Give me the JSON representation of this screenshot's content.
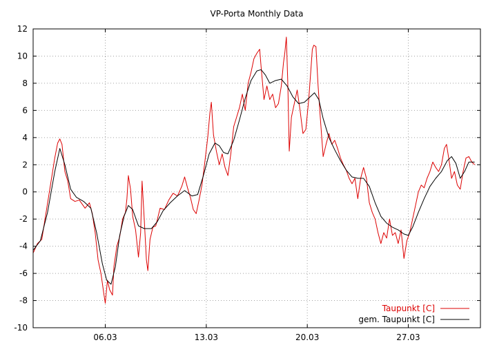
{
  "chart_data": {
    "type": "line",
    "title": "VP-Porta Monthly Data",
    "xlabel": "",
    "ylabel": "",
    "ylim": [
      -10,
      12
    ],
    "xlim": [
      1,
      32
    ],
    "grid": true,
    "legend_position": "bottom-right",
    "y_ticks": [
      -10,
      -8,
      -6,
      -4,
      -2,
      0,
      2,
      4,
      6,
      8,
      10,
      12
    ],
    "x_ticks": [
      {
        "label": "06.03",
        "value": 6
      },
      {
        "label": "13.03",
        "value": 13
      },
      {
        "label": "20.03",
        "value": 20
      },
      {
        "label": "27.03",
        "value": 27
      }
    ],
    "series": [
      {
        "name": "Taupunkt [C]",
        "color": "#dd0000",
        "points": [
          [
            1.0,
            -4.5
          ],
          [
            1.3,
            -3.8
          ],
          [
            1.6,
            -3.5
          ],
          [
            1.9,
            -1.5
          ],
          [
            2.2,
            0.5
          ],
          [
            2.5,
            2.5
          ],
          [
            2.7,
            3.6
          ],
          [
            2.85,
            3.9
          ],
          [
            3.0,
            3.5
          ],
          [
            3.2,
            1.5
          ],
          [
            3.4,
            0.8
          ],
          [
            3.6,
            -0.5
          ],
          [
            3.9,
            -0.7
          ],
          [
            4.2,
            -0.6
          ],
          [
            4.6,
            -1.2
          ],
          [
            4.9,
            -0.8
          ],
          [
            5.1,
            -1.6
          ],
          [
            5.3,
            -3.0
          ],
          [
            5.5,
            -5.0
          ],
          [
            5.7,
            -6.0
          ],
          [
            5.9,
            -7.5
          ],
          [
            6.0,
            -8.2
          ],
          [
            6.15,
            -6.5
          ],
          [
            6.3,
            -7.2
          ],
          [
            6.5,
            -7.6
          ],
          [
            6.6,
            -5.5
          ],
          [
            6.8,
            -4.0
          ],
          [
            7.0,
            -3.3
          ],
          [
            7.2,
            -2.0
          ],
          [
            7.4,
            -1.5
          ],
          [
            7.5,
            -0.5
          ],
          [
            7.6,
            1.2
          ],
          [
            7.75,
            0.2
          ],
          [
            7.9,
            -1.8
          ],
          [
            8.1,
            -2.8
          ],
          [
            8.3,
            -4.8
          ],
          [
            8.45,
            -3.0
          ],
          [
            8.55,
            0.8
          ],
          [
            8.7,
            -2.0
          ],
          [
            8.85,
            -5.0
          ],
          [
            8.95,
            -5.8
          ],
          [
            9.1,
            -3.5
          ],
          [
            9.3,
            -2.6
          ],
          [
            9.5,
            -2.5
          ],
          [
            9.8,
            -1.2
          ],
          [
            10.1,
            -1.3
          ],
          [
            10.4,
            -0.6
          ],
          [
            10.7,
            -0.1
          ],
          [
            11.0,
            -0.3
          ],
          [
            11.3,
            0.4
          ],
          [
            11.5,
            1.1
          ],
          [
            11.7,
            0.3
          ],
          [
            11.9,
            -0.4
          ],
          [
            12.1,
            -1.3
          ],
          [
            12.3,
            -1.6
          ],
          [
            12.5,
            -0.6
          ],
          [
            12.7,
            0.5
          ],
          [
            12.9,
            2.2
          ],
          [
            13.1,
            4.0
          ],
          [
            13.25,
            5.8
          ],
          [
            13.35,
            6.6
          ],
          [
            13.5,
            4.2
          ],
          [
            13.7,
            3.0
          ],
          [
            13.9,
            2.0
          ],
          [
            14.1,
            2.8
          ],
          [
            14.3,
            1.8
          ],
          [
            14.5,
            1.2
          ],
          [
            14.7,
            2.8
          ],
          [
            14.9,
            4.8
          ],
          [
            15.1,
            5.5
          ],
          [
            15.3,
            6.2
          ],
          [
            15.5,
            7.2
          ],
          [
            15.7,
            6.0
          ],
          [
            15.9,
            8.0
          ],
          [
            16.1,
            8.8
          ],
          [
            16.3,
            9.8
          ],
          [
            16.5,
            10.2
          ],
          [
            16.7,
            10.5
          ],
          [
            16.8,
            9.2
          ],
          [
            17.0,
            6.8
          ],
          [
            17.2,
            7.8
          ],
          [
            17.4,
            6.8
          ],
          [
            17.6,
            7.2
          ],
          [
            17.8,
            6.2
          ],
          [
            18.0,
            6.5
          ],
          [
            18.2,
            7.8
          ],
          [
            18.35,
            9.5
          ],
          [
            18.45,
            10.3
          ],
          [
            18.55,
            11.4
          ],
          [
            18.65,
            8.0
          ],
          [
            18.75,
            3.0
          ],
          [
            18.9,
            5.5
          ],
          [
            19.1,
            6.5
          ],
          [
            19.3,
            7.5
          ],
          [
            19.5,
            6.0
          ],
          [
            19.7,
            4.3
          ],
          [
            19.9,
            4.6
          ],
          [
            20.1,
            6.8
          ],
          [
            20.25,
            9.0
          ],
          [
            20.35,
            10.5
          ],
          [
            20.45,
            10.8
          ],
          [
            20.6,
            10.7
          ],
          [
            20.75,
            7.8
          ],
          [
            20.9,
            5.5
          ],
          [
            21.1,
            2.6
          ],
          [
            21.3,
            3.5
          ],
          [
            21.5,
            4.3
          ],
          [
            21.7,
            3.5
          ],
          [
            21.9,
            3.8
          ],
          [
            22.1,
            3.2
          ],
          [
            22.3,
            2.5
          ],
          [
            22.5,
            2.0
          ],
          [
            22.7,
            1.6
          ],
          [
            22.9,
            1.0
          ],
          [
            23.1,
            0.6
          ],
          [
            23.3,
            1.0
          ],
          [
            23.5,
            -0.5
          ],
          [
            23.7,
            1.0
          ],
          [
            23.9,
            1.8
          ],
          [
            24.1,
            1.0
          ],
          [
            24.3,
            -0.8
          ],
          [
            24.5,
            -1.5
          ],
          [
            24.7,
            -2.0
          ],
          [
            24.9,
            -3.0
          ],
          [
            25.1,
            -3.8
          ],
          [
            25.3,
            -3.0
          ],
          [
            25.5,
            -3.4
          ],
          [
            25.7,
            -2.0
          ],
          [
            25.9,
            -3.2
          ],
          [
            26.1,
            -3.0
          ],
          [
            26.3,
            -3.8
          ],
          [
            26.5,
            -2.8
          ],
          [
            26.7,
            -4.9
          ],
          [
            26.9,
            -3.6
          ],
          [
            27.1,
            -3.0
          ],
          [
            27.3,
            -2.0
          ],
          [
            27.5,
            -1.0
          ],
          [
            27.7,
            0.0
          ],
          [
            27.9,
            0.5
          ],
          [
            28.1,
            0.3
          ],
          [
            28.3,
            1.0
          ],
          [
            28.5,
            1.5
          ],
          [
            28.7,
            2.2
          ],
          [
            28.9,
            1.8
          ],
          [
            29.1,
            1.5
          ],
          [
            29.3,
            2.0
          ],
          [
            29.5,
            3.2
          ],
          [
            29.65,
            3.5
          ],
          [
            29.8,
            2.5
          ],
          [
            30.0,
            1.0
          ],
          [
            30.2,
            1.5
          ],
          [
            30.4,
            0.5
          ],
          [
            30.6,
            0.2
          ],
          [
            30.8,
            1.5
          ],
          [
            31.0,
            2.5
          ],
          [
            31.2,
            2.6
          ],
          [
            31.4,
            2.2
          ],
          [
            31.6,
            2.0
          ]
        ]
      },
      {
        "name": "gem. Taupunkt [C]",
        "color": "#000000",
        "points": [
          [
            1.0,
            -4.3
          ],
          [
            1.5,
            -3.6
          ],
          [
            2.0,
            -1.5
          ],
          [
            2.5,
            1.5
          ],
          [
            2.85,
            3.2
          ],
          [
            3.2,
            2.0
          ],
          [
            3.6,
            0.2
          ],
          [
            4.0,
            -0.4
          ],
          [
            4.5,
            -0.7
          ],
          [
            5.0,
            -1.2
          ],
          [
            5.4,
            -3.0
          ],
          [
            5.8,
            -5.3
          ],
          [
            6.1,
            -6.5
          ],
          [
            6.4,
            -6.8
          ],
          [
            6.7,
            -5.5
          ],
          [
            7.0,
            -3.2
          ],
          [
            7.3,
            -1.8
          ],
          [
            7.6,
            -1.0
          ],
          [
            7.9,
            -1.3
          ],
          [
            8.3,
            -2.5
          ],
          [
            8.7,
            -2.7
          ],
          [
            9.2,
            -2.7
          ],
          [
            9.6,
            -2.2
          ],
          [
            10.0,
            -1.4
          ],
          [
            10.5,
            -0.8
          ],
          [
            11.0,
            -0.3
          ],
          [
            11.5,
            0.1
          ],
          [
            12.0,
            -0.3
          ],
          [
            12.4,
            -0.2
          ],
          [
            12.8,
            1.2
          ],
          [
            13.2,
            2.8
          ],
          [
            13.6,
            3.6
          ],
          [
            13.9,
            3.4
          ],
          [
            14.2,
            2.9
          ],
          [
            14.5,
            2.8
          ],
          [
            14.9,
            3.8
          ],
          [
            15.3,
            5.3
          ],
          [
            15.7,
            6.9
          ],
          [
            16.1,
            8.2
          ],
          [
            16.5,
            8.9
          ],
          [
            16.8,
            9.0
          ],
          [
            17.1,
            8.6
          ],
          [
            17.4,
            8.0
          ],
          [
            17.8,
            8.2
          ],
          [
            18.2,
            8.3
          ],
          [
            18.6,
            7.8
          ],
          [
            19.0,
            7.0
          ],
          [
            19.4,
            6.5
          ],
          [
            19.8,
            6.6
          ],
          [
            20.2,
            7.0
          ],
          [
            20.5,
            7.3
          ],
          [
            20.8,
            6.8
          ],
          [
            21.1,
            5.4
          ],
          [
            21.5,
            4.0
          ],
          [
            21.9,
            3.1
          ],
          [
            22.3,
            2.3
          ],
          [
            22.7,
            1.6
          ],
          [
            23.1,
            1.1
          ],
          [
            23.5,
            1.0
          ],
          [
            23.9,
            1.0
          ],
          [
            24.3,
            0.4
          ],
          [
            24.7,
            -0.8
          ],
          [
            25.1,
            -1.8
          ],
          [
            25.5,
            -2.3
          ],
          [
            25.9,
            -2.6
          ],
          [
            26.3,
            -2.8
          ],
          [
            26.7,
            -3.1
          ],
          [
            27.0,
            -3.2
          ],
          [
            27.3,
            -2.6
          ],
          [
            27.7,
            -1.5
          ],
          [
            28.1,
            -0.5
          ],
          [
            28.5,
            0.4
          ],
          [
            28.9,
            1.0
          ],
          [
            29.3,
            1.5
          ],
          [
            29.7,
            2.3
          ],
          [
            30.0,
            2.6
          ],
          [
            30.3,
            2.1
          ],
          [
            30.6,
            1.0
          ],
          [
            30.9,
            1.5
          ],
          [
            31.2,
            2.2
          ],
          [
            31.6,
            2.2
          ]
        ]
      }
    ]
  }
}
